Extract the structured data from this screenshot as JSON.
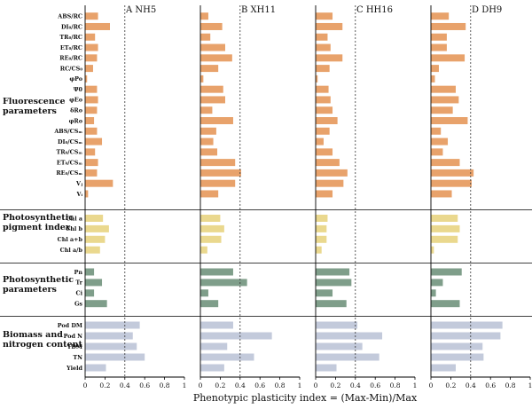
{
  "chart_data": {
    "type": "bar",
    "orientation": "horizontal",
    "xlabel": "Phenotypic plasticity index = (Max-Min)/Max",
    "xlim": [
      0,
      1
    ],
    "xticks": [
      "0",
      "0.2",
      "0.4",
      "0.6",
      "0.8",
      "1"
    ],
    "reference_line": 0.4,
    "groups": [
      {
        "name": "Fluorescence parameters",
        "line1": "Fluorescence",
        "line2": "parameters",
        "color": "#E8A26B",
        "variables": [
          "ABS/RC",
          "DI₀/RC",
          "TR₀/RC",
          "ET₀/RC",
          "RE₀/RC",
          "RC/CS₀",
          "φPo",
          "Ψ0",
          "φEo",
          "δRo",
          "φRo",
          "ABS/CSₘ",
          "DI₀/CSₘ",
          "TR₀/CSₘ",
          "ET₀/CSₘ",
          "RE₀/CSₘ",
          "Vⱼ",
          "Vᵢ"
        ]
      },
      {
        "name": "Photosynthetic pigment index",
        "line1": "Photosynthetic",
        "line2": "pigment index",
        "color": "#EAD88E",
        "variables": [
          "Chl a",
          "Chl b",
          "Chl a+b",
          "Chl a/b"
        ]
      },
      {
        "name": "Photosynthetic parameters",
        "line1": "Photosynthetic",
        "line2": "parameters",
        "color": "#7F9E8A",
        "variables": [
          "Pn",
          "Tr",
          "Ci",
          "Gs"
        ]
      },
      {
        "name": "Biomass and nitrogen content",
        "line1": "Biomass and",
        "line2": "nitrogen content",
        "color": "#C3CADB",
        "variables": [
          "Pod DM",
          "Pod N",
          "TDM",
          "TN",
          "Yield"
        ]
      }
    ],
    "panels": [
      {
        "title": "A  NH5",
        "values": [
          0.13,
          0.25,
          0.1,
          0.13,
          0.12,
          0.08,
          0.02,
          0.12,
          0.13,
          0.12,
          0.09,
          0.12,
          0.17,
          0.1,
          0.13,
          0.12,
          0.28,
          0.03,
          0.18,
          0.24,
          0.2,
          0.15,
          0.09,
          0.17,
          0.09,
          0.22,
          0.55,
          0.48,
          0.52,
          0.6,
          0.21
        ]
      },
      {
        "title": "B  XH11",
        "values": [
          0.08,
          0.22,
          0.1,
          0.25,
          0.32,
          0.18,
          0.03,
          0.23,
          0.25,
          0.12,
          0.33,
          0.16,
          0.13,
          0.17,
          0.35,
          0.41,
          0.35,
          0.18,
          0.2,
          0.24,
          0.21,
          0.07,
          0.33,
          0.47,
          0.08,
          0.18,
          0.33,
          0.72,
          0.27,
          0.54,
          0.24
        ]
      },
      {
        "title": "C  HH16",
        "values": [
          0.17,
          0.27,
          0.12,
          0.15,
          0.27,
          0.14,
          0.02,
          0.13,
          0.15,
          0.17,
          0.22,
          0.14,
          0.08,
          0.17,
          0.24,
          0.32,
          0.28,
          0.17,
          0.12,
          0.11,
          0.11,
          0.06,
          0.34,
          0.36,
          0.17,
          0.31,
          0.42,
          0.67,
          0.47,
          0.64,
          0.21
        ]
      },
      {
        "title": "D  DH9",
        "values": [
          0.18,
          0.35,
          0.16,
          0.16,
          0.34,
          0.08,
          0.04,
          0.25,
          0.28,
          0.22,
          0.37,
          0.1,
          0.17,
          0.12,
          0.29,
          0.43,
          0.41,
          0.21,
          0.27,
          0.29,
          0.27,
          0.03,
          0.31,
          0.12,
          0.05,
          0.29,
          0.72,
          0.7,
          0.52,
          0.53,
          0.25
        ]
      }
    ]
  }
}
